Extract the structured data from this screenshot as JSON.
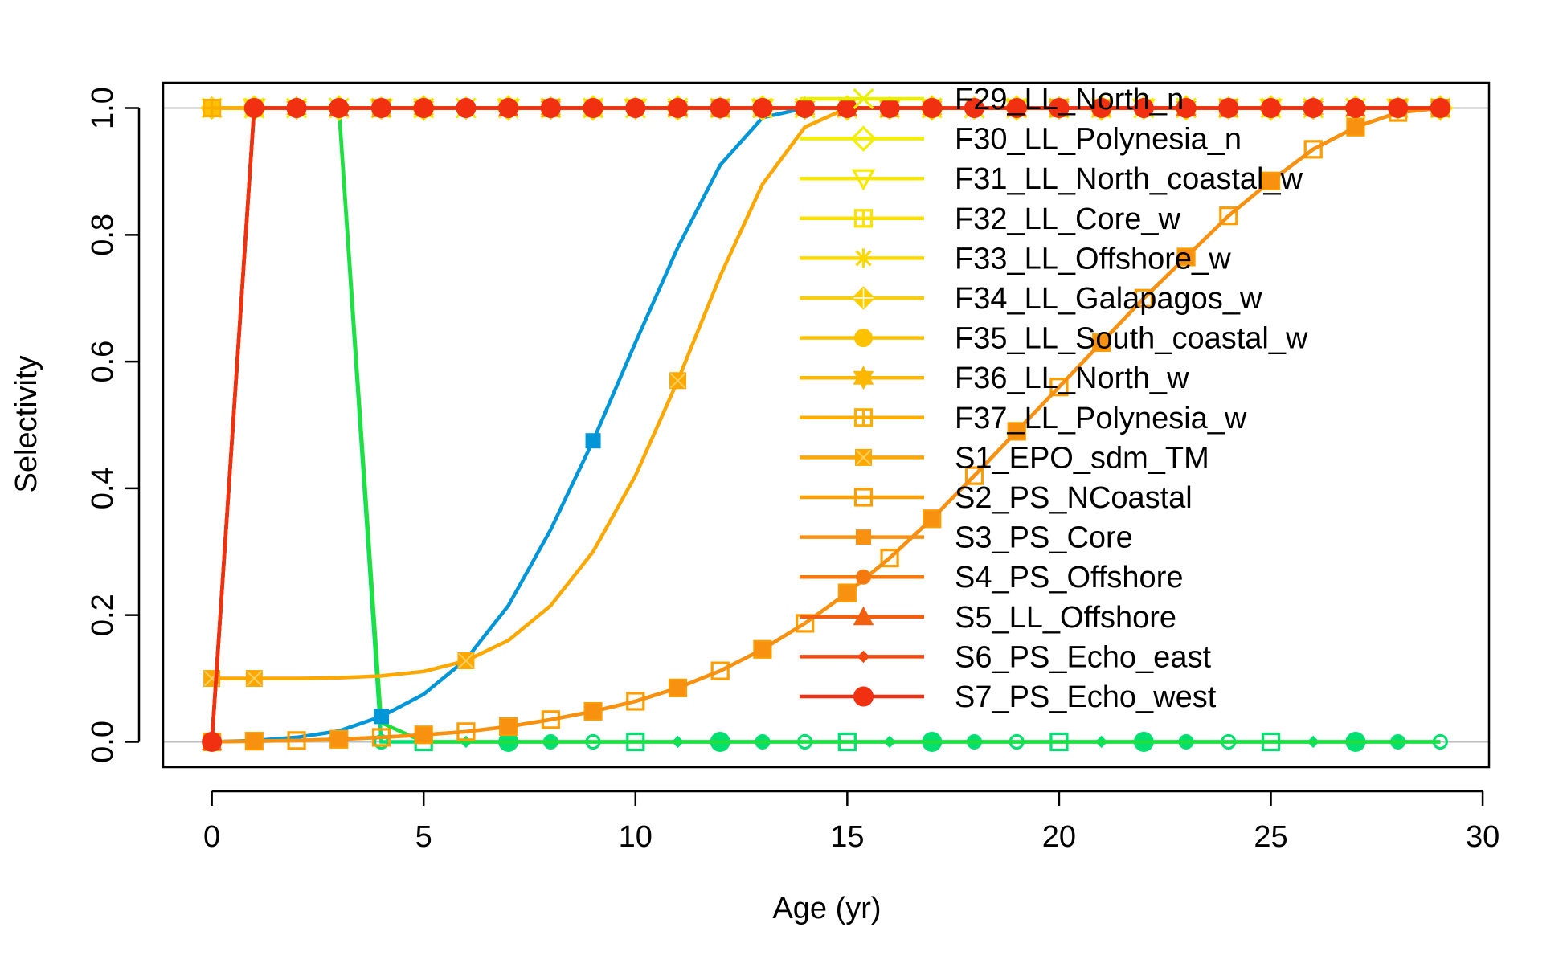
{
  "chart_data": {
    "type": "line",
    "title": "",
    "xlabel": "Age (yr)",
    "ylabel": "Selectivity",
    "xlim": [
      -1.15,
      30.15
    ],
    "ylim": [
      -0.04,
      1.04
    ],
    "x_ticks": [
      0,
      5,
      10,
      15,
      20,
      25,
      30
    ],
    "x_tick_labels": [
      "0",
      "5",
      "10",
      "15",
      "20",
      "25",
      "30"
    ],
    "y_ticks": [
      0.0,
      0.2,
      0.4,
      0.6,
      0.8,
      1.0
    ],
    "y_tick_labels": [
      "0.0",
      "0.2",
      "0.4",
      "0.6",
      "0.8",
      "1.0"
    ],
    "reference_lines": [
      0,
      1
    ],
    "reference_line_color": "#BEBEBE",
    "grid": false,
    "legend_position": "top-right",
    "x": [
      0,
      1,
      2,
      3,
      4,
      5,
      6,
      7,
      8,
      9,
      10,
      11,
      12,
      13,
      14,
      15,
      16,
      17,
      18,
      19,
      20,
      21,
      22,
      23,
      24,
      25,
      26,
      27,
      28,
      29
    ],
    "background_series": [
      {
        "color": "#00E070",
        "values": [
          0,
          1,
          1,
          1,
          0,
          0,
          0,
          0,
          0,
          0,
          0,
          0,
          0,
          0,
          0,
          0,
          0,
          0,
          0,
          0,
          0,
          0,
          0,
          0,
          0,
          0,
          0,
          0,
          0,
          0
        ],
        "marker": "mixed"
      },
      {
        "color": "#20E040",
        "values": [
          0,
          1,
          1,
          1,
          0.03,
          0,
          0,
          0,
          0,
          0,
          0,
          0,
          0,
          0,
          0,
          0,
          0,
          0,
          0,
          0,
          0,
          0,
          0,
          0,
          0,
          0,
          0,
          0,
          0,
          0
        ],
        "marker": "none"
      },
      {
        "color": "#0096D8",
        "values": [
          0,
          0.002,
          0.007,
          0.017,
          0.04,
          0.075,
          0.13,
          0.215,
          0.335,
          0.475,
          0.63,
          0.78,
          0.91,
          0.985,
          1.0,
          1.0,
          1.0,
          1.0,
          1.0,
          1.0,
          1.0,
          1.0,
          1.0,
          1.0,
          1.0,
          1.0,
          1.0,
          1.0,
          1.0,
          1.0
        ],
        "marker": "square-filled"
      }
    ],
    "series": [
      {
        "name": "F29_LL_North_n",
        "color": "#E8F000",
        "marker": "x",
        "values": [
          1,
          1,
          1,
          1,
          1,
          1,
          1,
          1,
          1,
          1,
          1,
          1,
          1,
          1,
          1,
          1,
          1,
          1,
          1,
          1,
          1,
          1,
          1,
          1,
          1,
          1,
          1,
          1,
          1,
          1
        ]
      },
      {
        "name": "F30_LL_Polynesia_n",
        "color": "#F2F000",
        "marker": "diamond-open",
        "values": [
          1,
          1,
          1,
          1,
          1,
          1,
          1,
          1,
          1,
          1,
          1,
          1,
          1,
          1,
          1,
          1,
          1,
          1,
          1,
          1,
          1,
          1,
          1,
          1,
          1,
          1,
          1,
          1,
          1,
          1
        ]
      },
      {
        "name": "F31_LL_North_coastal_w",
        "color": "#F8E800",
        "marker": "triangle-down-open",
        "values": [
          1,
          1,
          1,
          1,
          1,
          1,
          1,
          1,
          1,
          1,
          1,
          1,
          1,
          1,
          1,
          1,
          1,
          1,
          1,
          1,
          1,
          1,
          1,
          1,
          1,
          1,
          1,
          1,
          1,
          1
        ]
      },
      {
        "name": "F32_LL_Core_w",
        "color": "#FCE000",
        "marker": "square-cross",
        "values": [
          1,
          1,
          1,
          1,
          1,
          1,
          1,
          1,
          1,
          1,
          1,
          1,
          1,
          1,
          1,
          1,
          1,
          1,
          1,
          1,
          1,
          1,
          1,
          1,
          1,
          1,
          1,
          1,
          1,
          1
        ]
      },
      {
        "name": "F33_LL_Offshore_w",
        "color": "#FCD800",
        "marker": "asterisk",
        "values": [
          1,
          1,
          1,
          1,
          1,
          1,
          1,
          1,
          1,
          1,
          1,
          1,
          1,
          1,
          1,
          1,
          1,
          1,
          1,
          1,
          1,
          1,
          1,
          1,
          1,
          1,
          1,
          1,
          1,
          1
        ]
      },
      {
        "name": "F34_LL_Galapagos_w",
        "color": "#FCCD00",
        "marker": "diamond-cross",
        "values": [
          1,
          1,
          1,
          1,
          1,
          1,
          1,
          1,
          1,
          1,
          1,
          1,
          1,
          1,
          1,
          1,
          1,
          1,
          1,
          1,
          1,
          1,
          1,
          1,
          1,
          1,
          1,
          1,
          1,
          1
        ]
      },
      {
        "name": "F35_LL_South_coastal_w",
        "color": "#FCC200",
        "marker": "circle-cross",
        "values": [
          1,
          1,
          1,
          1,
          1,
          1,
          1,
          1,
          1,
          1,
          1,
          1,
          1,
          1,
          1,
          1,
          1,
          1,
          1,
          1,
          1,
          1,
          1,
          1,
          1,
          1,
          1,
          1,
          1,
          1
        ]
      },
      {
        "name": "F36_LL_North_w",
        "color": "#FCB800",
        "marker": "star-of-david",
        "values": [
          1,
          1,
          1,
          1,
          1,
          1,
          1,
          1,
          1,
          1,
          1,
          1,
          1,
          1,
          1,
          1,
          1,
          1,
          1,
          1,
          1,
          1,
          1,
          1,
          1,
          1,
          1,
          1,
          1,
          1
        ]
      },
      {
        "name": "F37_LL_Polynesia_w",
        "color": "#FCAE00",
        "marker": "square-plus",
        "values": [
          1,
          1,
          1,
          1,
          1,
          1,
          1,
          1,
          1,
          1,
          1,
          1,
          1,
          1,
          1,
          1,
          1,
          1,
          1,
          1,
          1,
          1,
          1,
          1,
          1,
          1,
          1,
          1,
          1,
          1
        ]
      },
      {
        "name": "S1_EPO_sdm_TM",
        "color": "#FCA800",
        "marker": "square-x",
        "values": [
          0.1,
          0.1,
          0.1,
          0.101,
          0.104,
          0.111,
          0.128,
          0.16,
          0.215,
          0.3,
          0.42,
          0.57,
          0.735,
          0.88,
          0.97,
          1.0,
          1.0,
          1.0,
          1.0,
          1.0,
          1.0,
          1.0,
          1.0,
          1.0,
          1.0,
          1.0,
          1.0,
          1.0,
          1.0,
          1.0
        ]
      },
      {
        "name": "S2_PS_NCoastal",
        "color": "#FC9E00",
        "marker": "square-open",
        "values": [
          0,
          0.001,
          0.002,
          0.004,
          0.007,
          0.011,
          0.016,
          0.024,
          0.035,
          0.048,
          0.064,
          0.085,
          0.112,
          0.146,
          0.187,
          0.235,
          0.29,
          0.352,
          0.42,
          0.49,
          0.56,
          0.63,
          0.7,
          0.765,
          0.83,
          0.885,
          0.935,
          0.97,
          0.993,
          1.0
        ]
      },
      {
        "name": "S3_PS_Core",
        "color": "#F89010",
        "marker": "square-filled",
        "values": [
          0,
          0.001,
          0.002,
          0.004,
          0.007,
          0.011,
          0.016,
          0.024,
          0.035,
          0.048,
          0.064,
          0.085,
          0.112,
          0.146,
          0.187,
          0.235,
          0.29,
          0.352,
          0.42,
          0.49,
          0.56,
          0.63,
          0.7,
          0.765,
          0.83,
          0.885,
          0.935,
          0.97,
          0.993,
          1.0
        ]
      },
      {
        "name": "S4_PS_Offshore",
        "color": "#F47A10",
        "marker": "circle-filled",
        "values": [
          0,
          1,
          1,
          1,
          1,
          1,
          1,
          1,
          1,
          1,
          1,
          1,
          1,
          1,
          1,
          1,
          1,
          1,
          1,
          1,
          1,
          1,
          1,
          1,
          1,
          1,
          1,
          1,
          1,
          1
        ]
      },
      {
        "name": "S5_LL_Offshore",
        "color": "#F06010",
        "marker": "triangle-filled",
        "values": [
          0,
          1,
          1,
          1,
          1,
          1,
          1,
          1,
          1,
          1,
          1,
          1,
          1,
          1,
          1,
          1,
          1,
          1,
          1,
          1,
          1,
          1,
          1,
          1,
          1,
          1,
          1,
          1,
          1,
          1
        ]
      },
      {
        "name": "S6_PS_Echo_east",
        "color": "#F04A10",
        "marker": "diamond-filled",
        "values": [
          0,
          1,
          1,
          1,
          1,
          1,
          1,
          1,
          1,
          1,
          1,
          1,
          1,
          1,
          1,
          1,
          1,
          1,
          1,
          1,
          1,
          1,
          1,
          1,
          1,
          1,
          1,
          1,
          1,
          1
        ]
      },
      {
        "name": "S7_PS_Echo_west",
        "color": "#F03010",
        "marker": "big-circle-filled",
        "values": [
          0,
          1,
          1,
          1,
          1,
          1,
          1,
          1,
          1,
          1,
          1,
          1,
          1,
          1,
          1,
          1,
          1,
          1,
          1,
          1,
          1,
          1,
          1,
          1,
          1,
          1,
          1,
          1,
          1,
          1
        ]
      }
    ]
  }
}
